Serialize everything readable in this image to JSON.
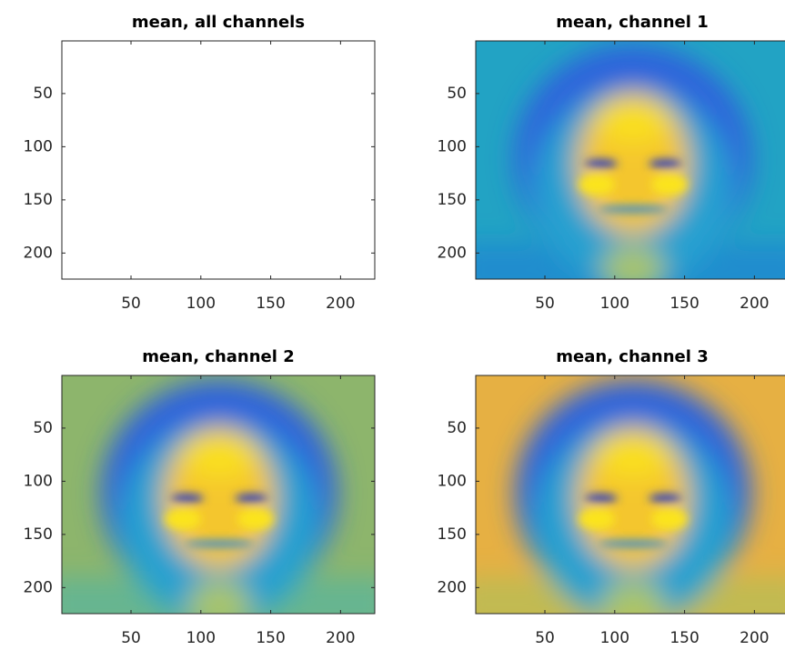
{
  "chart_data": [
    {
      "type": "image",
      "title": "mean, all channels",
      "xlim": [
        0.5,
        224.5
      ],
      "ylim": [
        0.5,
        224.5
      ],
      "xticks": [
        50,
        100,
        150,
        200
      ],
      "yticks": [
        50,
        100,
        150,
        200
      ]
    },
    {
      "type": "image",
      "title": "mean, channel 1",
      "xlim": [
        0.5,
        224.5
      ],
      "ylim": [
        0.5,
        224.5
      ],
      "xticks": [
        50,
        100,
        150,
        200
      ],
      "yticks": [
        50,
        100,
        150,
        200
      ]
    },
    {
      "type": "image",
      "title": "mean, channel 2",
      "xlim": [
        0.5,
        224.5
      ],
      "ylim": [
        0.5,
        224.5
      ],
      "xticks": [
        50,
        100,
        150,
        200
      ],
      "yticks": [
        50,
        100,
        150,
        200
      ]
    },
    {
      "type": "image",
      "title": "mean, channel 3",
      "xlim": [
        0.5,
        224.5
      ],
      "ylim": [
        0.5,
        224.5
      ],
      "xticks": [
        50,
        100,
        150,
        200
      ],
      "yticks": [
        50,
        100,
        150,
        200
      ]
    }
  ]
}
